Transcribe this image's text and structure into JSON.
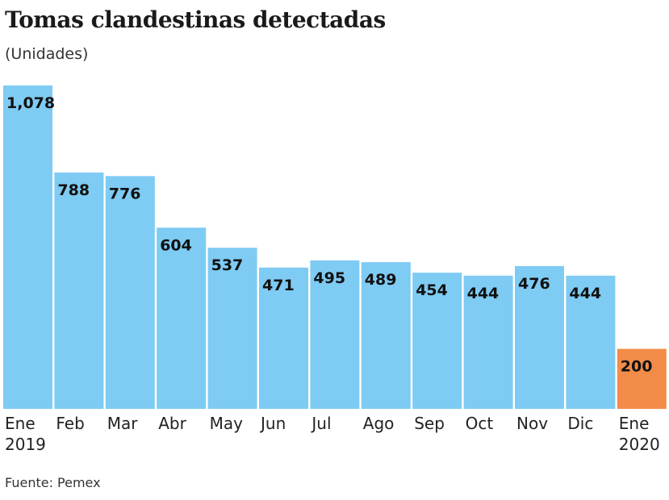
{
  "chart_data": {
    "type": "bar",
    "title": "Tomas clandestinas detectadas",
    "subtitle": "(Unidades)",
    "source": "Fuente: Pemex",
    "categories": [
      [
        "Ene",
        "2019"
      ],
      [
        "Feb"
      ],
      [
        "Mar"
      ],
      [
        "Abr"
      ],
      [
        "May"
      ],
      [
        "Jun"
      ],
      [
        "Jul"
      ],
      [
        "Ago"
      ],
      [
        "Sep"
      ],
      [
        "Oct"
      ],
      [
        "Nov"
      ],
      [
        "Dic"
      ],
      [
        "Ene",
        "2020"
      ]
    ],
    "values": [
      1078,
      788,
      776,
      604,
      537,
      471,
      495,
      489,
      454,
      444,
      476,
      444,
      200
    ],
    "value_labels": [
      "1,078",
      "788",
      "776",
      "604",
      "537",
      "471",
      "495",
      "489",
      "454",
      "444",
      "476",
      "444",
      "200"
    ],
    "colors": [
      "#7ecbf3",
      "#7ecbf3",
      "#7ecbf3",
      "#7ecbf3",
      "#7ecbf3",
      "#7ecbf3",
      "#7ecbf3",
      "#7ecbf3",
      "#7ecbf3",
      "#7ecbf3",
      "#7ecbf3",
      "#7ecbf3",
      "#f28c48"
    ],
    "ylim": [
      0,
      1078
    ],
    "grid": false,
    "xlabel": "",
    "ylabel": ""
  }
}
